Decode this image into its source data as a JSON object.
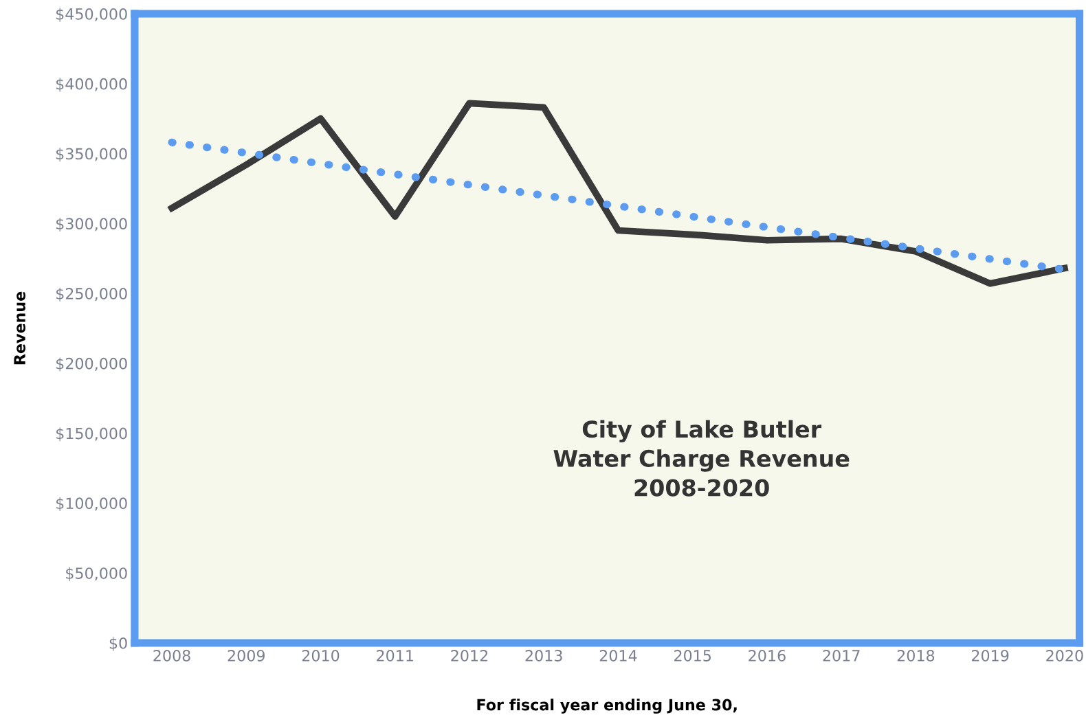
{
  "chart_data": {
    "type": "line",
    "title": "City of Lake Butler\nWater Charge Revenue\n2008-2020",
    "xlabel": "For fiscal year ending June 30,",
    "ylabel": "Revenue",
    "series": [
      {
        "color": "#3a3a3a",
        "line_style": "solid",
        "x": [
          2008,
          2009,
          2010,
          2011,
          2012,
          2013,
          2014,
          2015,
          2016,
          2017,
          2018,
          2019,
          2020
        ],
        "values": [
          311000,
          342000,
          375000,
          305000,
          386000,
          383000,
          295000,
          292000,
          288000,
          289000,
          280000,
          257000,
          268000
        ]
      },
      {
        "color": "#5b9bf0",
        "line_style": "dotted",
        "x": [
          2008,
          2020
        ],
        "values": [
          358000,
          267000
        ]
      }
    ],
    "xlim": [
      2007.5,
      2020.2
    ],
    "xticks": [
      2008,
      2009,
      2010,
      2011,
      2012,
      2013,
      2014,
      2015,
      2016,
      2017,
      2018,
      2019,
      2020
    ],
    "ylim": [
      0,
      450000
    ],
    "yticks": [
      {
        "value": 0,
        "label": "$0"
      },
      {
        "value": 50000,
        "label": "$50,000"
      },
      {
        "value": 100000,
        "label": "$100,000"
      },
      {
        "value": 150000,
        "label": "$150,000"
      },
      {
        "value": 200000,
        "label": "$200,000"
      },
      {
        "value": 250000,
        "label": "$250,000"
      },
      {
        "value": 300000,
        "label": "$300,000"
      },
      {
        "value": 350000,
        "label": "$350,000"
      },
      {
        "value": 400000,
        "label": "$400,000"
      },
      {
        "value": 450000,
        "label": "$450,000"
      }
    ],
    "grid": false,
    "legend": false,
    "marker": "none"
  }
}
